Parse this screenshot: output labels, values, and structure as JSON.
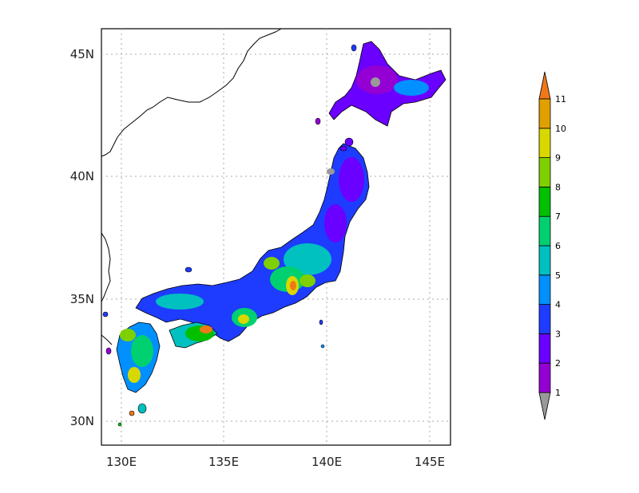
{
  "map": {
    "x_ticks": [
      "130E",
      "135E",
      "140E",
      "145E"
    ],
    "y_ticks": [
      "45N",
      "40N",
      "35N",
      "30N"
    ],
    "grid": "dotted",
    "lon_range": [
      129,
      146
    ],
    "lat_range": [
      29,
      46
    ]
  },
  "colorbar": {
    "orientation": "vertical",
    "labels": [
      "1",
      "2",
      "3",
      "4",
      "5",
      "6",
      "7",
      "8",
      "9",
      "10",
      "11"
    ],
    "under_color": "#999999",
    "over_color": "#f07818",
    "colors": [
      "#9400d3",
      "#6a00ff",
      "#1e3cff",
      "#0090ff",
      "#00c0c0",
      "#00d070",
      "#00c000",
      "#7fd000",
      "#d8d800",
      "#e0a000"
    ]
  }
}
